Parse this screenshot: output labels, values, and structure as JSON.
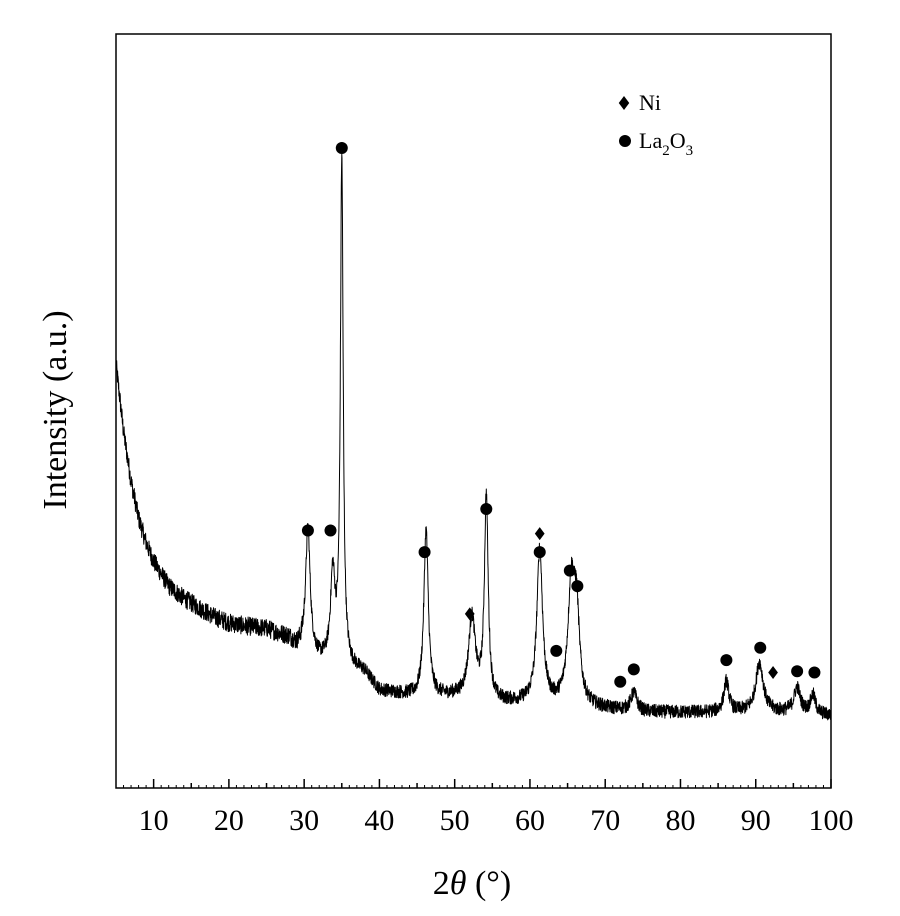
{
  "chart_data": {
    "type": "line",
    "xlabel": "2θ (°)",
    "xlabel_parts": {
      "prefix": "2",
      "theta": "θ",
      "unit": " (°)"
    },
    "ylabel": "Intensity (a.u.)",
    "xlim": [
      5,
      100
    ],
    "ylim": [
      0,
      100
    ],
    "x_ticks": [
      10,
      20,
      30,
      40,
      50,
      60,
      70,
      80,
      90,
      100
    ],
    "y_ticks_shown": false,
    "grid": false,
    "legend_position": "top-right",
    "legend": [
      {
        "marker": "diamond",
        "label": "Ni"
      },
      {
        "marker": "circle",
        "label": "La2O3",
        "label_parts": {
          "base": "La",
          "s1": "2",
          "mid": "O",
          "s2": "3"
        }
      }
    ],
    "series": [
      {
        "baseline": [
          [
            5,
            65
          ],
          [
            6,
            54
          ],
          [
            7,
            46
          ],
          [
            8,
            40
          ],
          [
            9,
            36
          ],
          [
            10,
            33
          ],
          [
            12,
            29
          ],
          [
            14,
            27
          ],
          [
            16,
            25.5
          ],
          [
            18,
            24
          ],
          [
            20,
            23
          ],
          [
            22,
            22.5
          ],
          [
            25,
            22
          ],
          [
            28,
            20.5
          ],
          [
            29,
            19
          ],
          [
            30,
            19
          ],
          [
            32,
            17
          ],
          [
            35,
            16
          ],
          [
            38,
            15
          ],
          [
            40,
            12
          ],
          [
            45,
            11
          ],
          [
            50,
            11
          ],
          [
            55,
            10
          ],
          [
            60,
            10
          ],
          [
            65,
            9.5
          ],
          [
            70,
            9
          ],
          [
            75,
            8.5
          ],
          [
            80,
            8.5
          ],
          [
            85,
            8.5
          ],
          [
            90,
            8.5
          ],
          [
            95,
            8.5
          ],
          [
            100,
            8
          ]
        ],
        "peaks": [
          {
            "x": 30.5,
            "height": 20,
            "width": 0.35
          },
          {
            "x": 33.8,
            "height": 14,
            "width": 0.35
          },
          {
            "x": 35.0,
            "height": 82,
            "width": 0.22
          },
          {
            "x": 46.2,
            "height": 27,
            "width": 0.35
          },
          {
            "x": 52.3,
            "height": 13,
            "width": 0.55
          },
          {
            "x": 54.2,
            "height": 33,
            "width": 0.3
          },
          {
            "x": 61.3,
            "height": 25,
            "width": 0.45
          },
          {
            "x": 65.5,
            "height": 19,
            "width": 0.55
          },
          {
            "x": 66.2,
            "height": 13,
            "width": 0.45
          },
          {
            "x": 73.8,
            "height": 3,
            "width": 0.5
          },
          {
            "x": 86.1,
            "height": 5,
            "width": 0.4
          },
          {
            "x": 90.5,
            "height": 8,
            "width": 0.6
          },
          {
            "x": 95.5,
            "height": 4,
            "width": 0.5
          },
          {
            "x": 97.6,
            "height": 3,
            "width": 0.4
          }
        ]
      }
    ],
    "annotations": [
      {
        "x": 30.5,
        "y": 38,
        "marker": "circle"
      },
      {
        "x": 33.5,
        "y": 38,
        "marker": "circle"
      },
      {
        "x": 35.0,
        "y": 100,
        "marker": "circle"
      },
      {
        "x": 46.0,
        "y": 34.5,
        "marker": "circle"
      },
      {
        "x": 52.0,
        "y": 24.5,
        "marker": "diamond"
      },
      {
        "x": 54.2,
        "y": 41.5,
        "marker": "circle"
      },
      {
        "x": 63.5,
        "y": 18.5,
        "marker": "circle"
      },
      {
        "x": 61.3,
        "y": 37.5,
        "marker": "diamond"
      },
      {
        "x": 61.3,
        "y": 34.5,
        "marker": "circle"
      },
      {
        "x": 65.3,
        "y": 31.5,
        "marker": "circle"
      },
      {
        "x": 66.3,
        "y": 29,
        "marker": "circle"
      },
      {
        "x": 72.0,
        "y": 13.5,
        "marker": "circle"
      },
      {
        "x": 73.8,
        "y": 15.5,
        "marker": "circle"
      },
      {
        "x": 86.1,
        "y": 17,
        "marker": "circle"
      },
      {
        "x": 90.6,
        "y": 19,
        "marker": "circle"
      },
      {
        "x": 92.3,
        "y": 15,
        "marker": "diamond"
      },
      {
        "x": 95.5,
        "y": 15.2,
        "marker": "circle"
      },
      {
        "x": 97.8,
        "y": 15,
        "marker": "circle"
      }
    ]
  }
}
